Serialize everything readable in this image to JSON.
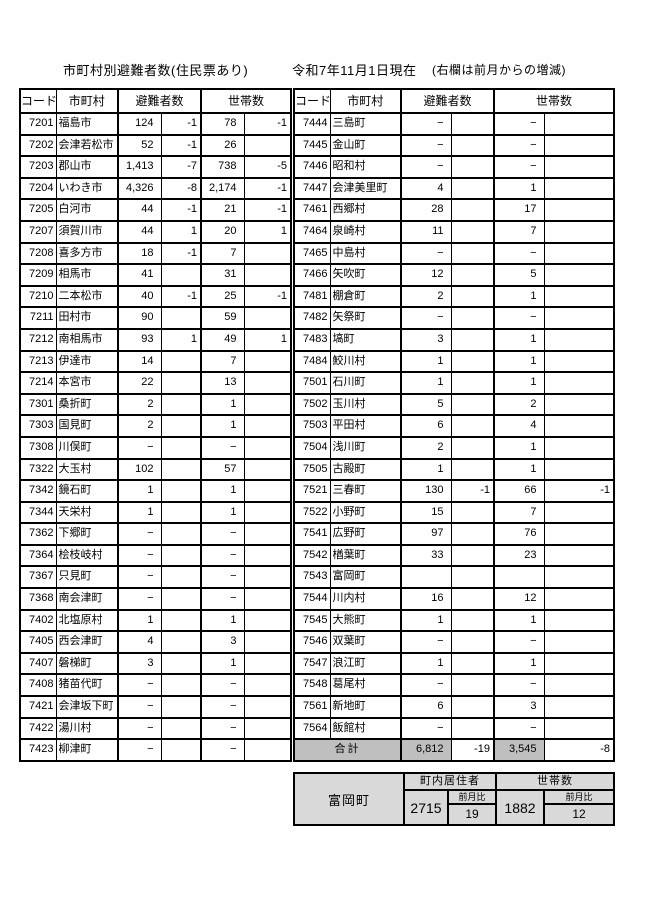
{
  "title": {
    "main": "市町村別避難者数(住民票あり)",
    "date": "令和7年11月1日現在",
    "note": "(右欄は前月からの増減)"
  },
  "headers": {
    "code": "コード",
    "municipality": "市町村",
    "evacuees": "避難者数",
    "households": "世帯数"
  },
  "left_rows": [
    [
      "7201",
      "福島市",
      "124",
      "-1",
      "78",
      "-1"
    ],
    [
      "7202",
      "会津若松市",
      "52",
      "-1",
      "26",
      ""
    ],
    [
      "7203",
      "郡山市",
      "1,413",
      "-7",
      "738",
      "-5"
    ],
    [
      "7204",
      "いわき市",
      "4,326",
      "-8",
      "2,174",
      "-1"
    ],
    [
      "7205",
      "白河市",
      "44",
      "-1",
      "21",
      "-1"
    ],
    [
      "7207",
      "須賀川市",
      "44",
      "1",
      "20",
      "1"
    ],
    [
      "7208",
      "喜多方市",
      "18",
      "-1",
      "7",
      ""
    ],
    [
      "7209",
      "相馬市",
      "41",
      "",
      "31",
      ""
    ],
    [
      "7210",
      "二本松市",
      "40",
      "-1",
      "25",
      "-1"
    ],
    [
      "7211",
      "田村市",
      "90",
      "",
      "59",
      ""
    ],
    [
      "7212",
      "南相馬市",
      "93",
      "1",
      "49",
      "1"
    ],
    [
      "7213",
      "伊達市",
      "14",
      "",
      "7",
      ""
    ],
    [
      "7214",
      "本宮市",
      "22",
      "",
      "13",
      ""
    ],
    [
      "7301",
      "桑折町",
      "2",
      "",
      "1",
      ""
    ],
    [
      "7303",
      "国見町",
      "2",
      "",
      "1",
      ""
    ],
    [
      "7308",
      "川俣町",
      "−",
      "",
      "−",
      ""
    ],
    [
      "7322",
      "大玉村",
      "102",
      "",
      "57",
      ""
    ],
    [
      "7342",
      "鏡石町",
      "1",
      "",
      "1",
      ""
    ],
    [
      "7344",
      "天栄村",
      "1",
      "",
      "1",
      ""
    ],
    [
      "7362",
      "下郷町",
      "−",
      "",
      "−",
      ""
    ],
    [
      "7364",
      "桧枝岐村",
      "−",
      "",
      "−",
      ""
    ],
    [
      "7367",
      "只見町",
      "−",
      "",
      "−",
      ""
    ],
    [
      "7368",
      "南会津町",
      "−",
      "",
      "−",
      ""
    ],
    [
      "7402",
      "北塩原村",
      "1",
      "",
      "1",
      ""
    ],
    [
      "7405",
      "西会津町",
      "4",
      "",
      "3",
      ""
    ],
    [
      "7407",
      "磐梯町",
      "3",
      "",
      "1",
      ""
    ],
    [
      "7408",
      "猪苗代町",
      "−",
      "",
      "−",
      ""
    ],
    [
      "7421",
      "会津坂下町",
      "−",
      "",
      "−",
      ""
    ],
    [
      "7422",
      "湯川村",
      "−",
      "",
      "−",
      ""
    ],
    [
      "7423",
      "柳津町",
      "−",
      "",
      "−",
      ""
    ]
  ],
  "right_rows": [
    [
      "7444",
      "三島町",
      "−",
      "",
      "−",
      ""
    ],
    [
      "7445",
      "金山町",
      "−",
      "",
      "−",
      ""
    ],
    [
      "7446",
      "昭和村",
      "−",
      "",
      "−",
      ""
    ],
    [
      "7447",
      "会津美里町",
      "4",
      "",
      "1",
      ""
    ],
    [
      "7461",
      "西郷村",
      "28",
      "",
      "17",
      ""
    ],
    [
      "7464",
      "泉崎村",
      "11",
      "",
      "7",
      ""
    ],
    [
      "7465",
      "中島村",
      "−",
      "",
      "−",
      ""
    ],
    [
      "7466",
      "矢吹町",
      "12",
      "",
      "5",
      ""
    ],
    [
      "7481",
      "棚倉町",
      "2",
      "",
      "1",
      ""
    ],
    [
      "7482",
      "矢祭町",
      "−",
      "",
      "−",
      ""
    ],
    [
      "7483",
      "塙町",
      "3",
      "",
      "1",
      ""
    ],
    [
      "7484",
      "鮫川村",
      "1",
      "",
      "1",
      ""
    ],
    [
      "7501",
      "石川町",
      "1",
      "",
      "1",
      ""
    ],
    [
      "7502",
      "玉川村",
      "5",
      "",
      "2",
      ""
    ],
    [
      "7503",
      "平田村",
      "6",
      "",
      "4",
      ""
    ],
    [
      "7504",
      "浅川町",
      "2",
      "",
      "1",
      ""
    ],
    [
      "7505",
      "古殿町",
      "1",
      "",
      "1",
      ""
    ],
    [
      "7521",
      "三春町",
      "130",
      "-1",
      "66",
      "-1"
    ],
    [
      "7522",
      "小野町",
      "15",
      "",
      "7",
      ""
    ],
    [
      "7541",
      "広野町",
      "97",
      "",
      "76",
      ""
    ],
    [
      "7542",
      "楢葉町",
      "33",
      "",
      "23",
      ""
    ],
    [
      "7543",
      "富岡町",
      "",
      "",
      "",
      ""
    ],
    [
      "7544",
      "川内村",
      "16",
      "",
      "12",
      ""
    ],
    [
      "7545",
      "大熊町",
      "1",
      "",
      "1",
      ""
    ],
    [
      "7546",
      "双葉町",
      "−",
      "",
      "−",
      ""
    ],
    [
      "7547",
      "浪江町",
      "1",
      "",
      "1",
      ""
    ],
    [
      "7548",
      "葛尾村",
      "−",
      "",
      "−",
      ""
    ],
    [
      "7561",
      "新地町",
      "6",
      "",
      "3",
      ""
    ],
    [
      "7564",
      "飯館村",
      "−",
      "",
      "−",
      ""
    ]
  ],
  "total": {
    "label": "合計",
    "evacuees": "6,812",
    "ev_diff": "-19",
    "households": "3,545",
    "hh_diff": "-8"
  },
  "summary": {
    "town": "富岡町",
    "residents_label": "町内居住者",
    "households_label": "世帯数",
    "prev_month_label": "前月比",
    "residents": "2715",
    "residents_diff": "19",
    "households": "1882",
    "households_diff": "12"
  },
  "colors": {
    "total_row_bg": "#bfbfbf",
    "summary_bg": "#d9d9d9",
    "border": "#000000"
  }
}
